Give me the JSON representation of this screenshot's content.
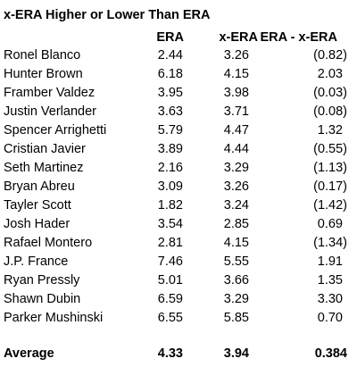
{
  "table": {
    "title": "x-ERA Higher or Lower Than ERA",
    "headers": {
      "name": "",
      "era": "ERA",
      "xera": "x-ERA",
      "diff": "ERA - x-ERA"
    },
    "rows": [
      {
        "name": "Ronel Blanco",
        "era": "2.44",
        "xera": "3.26",
        "diff": "(0.82)"
      },
      {
        "name": "Hunter Brown",
        "era": "6.18",
        "xera": "4.15",
        "diff": "2.03"
      },
      {
        "name": "Framber Valdez",
        "era": "3.95",
        "xera": "3.98",
        "diff": "(0.03)"
      },
      {
        "name": "Justin Verlander",
        "era": "3.63",
        "xera": "3.71",
        "diff": "(0.08)"
      },
      {
        "name": "Spencer Arrighetti",
        "era": "5.79",
        "xera": "4.47",
        "diff": "1.32"
      },
      {
        "name": "Cristian Javier",
        "era": "3.89",
        "xera": "4.44",
        "diff": "(0.55)"
      },
      {
        "name": "Seth Martinez",
        "era": "2.16",
        "xera": "3.29",
        "diff": "(1.13)"
      },
      {
        "name": "Bryan Abreu",
        "era": "3.09",
        "xera": "3.26",
        "diff": "(0.17)"
      },
      {
        "name": "Tayler Scott",
        "era": "1.82",
        "xera": "3.24",
        "diff": "(1.42)"
      },
      {
        "name": "Josh Hader",
        "era": "3.54",
        "xera": "2.85",
        "diff": "0.69"
      },
      {
        "name": "Rafael Montero",
        "era": "2.81",
        "xera": "4.15",
        "diff": "(1.34)"
      },
      {
        "name": "J.P. France",
        "era": "7.46",
        "xera": "5.55",
        "diff": "1.91"
      },
      {
        "name": "Ryan Pressly",
        "era": "5.01",
        "xera": "3.66",
        "diff": "1.35"
      },
      {
        "name": "Shawn Dubin",
        "era": "6.59",
        "xera": "3.29",
        "diff": "3.30"
      },
      {
        "name": "Parker Mushinski",
        "era": "6.55",
        "xera": "5.85",
        "diff": "0.70"
      }
    ],
    "average": {
      "name": "Average",
      "era": "4.33",
      "xera": "3.94",
      "diff": "0.384"
    }
  }
}
